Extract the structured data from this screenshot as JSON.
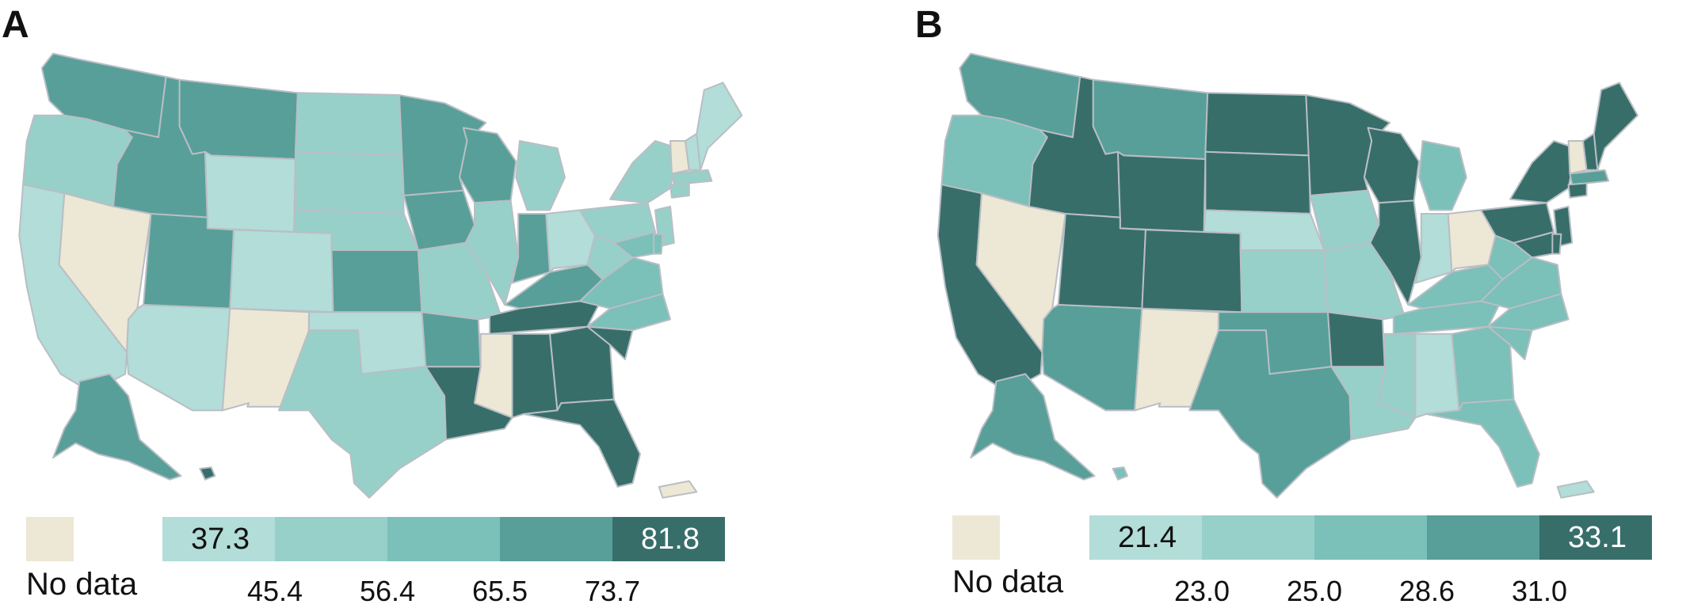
{
  "panels": [
    {
      "letter": "A",
      "no_data_label": "No data",
      "colors": [
        "#b2ddd8",
        "#97d0c9",
        "#7bc0b9",
        "#589f99",
        "#386e6a"
      ],
      "no_data_color": "#ede7d5",
      "legend": {
        "min_label": "37.3",
        "max_label": "81.8",
        "breaks": [
          "45.4",
          "56.4",
          "65.5",
          "73.7"
        ]
      },
      "states": {
        "WA": 3,
        "OR": 1,
        "CA": 0,
        "NV": -1,
        "ID": 3,
        "MT": 3,
        "WY": 0,
        "UT": 3,
        "AZ": 0,
        "NM": -1,
        "CO": 0,
        "ND": 1,
        "SD": 1,
        "NE": 1,
        "KS": 3,
        "OK": 0,
        "TX": 1,
        "MN": 3,
        "IA": 3,
        "MO": 1,
        "AR": 3,
        "LA": 4,
        "WI": 3,
        "IL": 1,
        "MI": 1,
        "IN": 3,
        "OH": 0,
        "KY": 3,
        "TN": 4,
        "MS": -1,
        "AL": 4,
        "GA": 4,
        "FL": 4,
        "SC": 4,
        "NC": 2,
        "VA": 2,
        "WV": 1,
        "PA": 1,
        "NY": 1,
        "VT": -1,
        "NH": 0,
        "ME": 0,
        "MA": 1,
        "CT": 1,
        "NJ": 1,
        "MD": 2,
        "DE": 2,
        "AK": 3,
        "HI": 4,
        "PR": -1
      }
    },
    {
      "letter": "B",
      "no_data_label": "No data",
      "colors": [
        "#b2ddd8",
        "#97d0c9",
        "#7bc0b9",
        "#589f99",
        "#386e6a"
      ],
      "no_data_color": "#ede7d5",
      "legend": {
        "min_label": "21.4",
        "max_label": "33.1",
        "breaks": [
          "23.0",
          "25.0",
          "28.6",
          "31.0"
        ]
      },
      "states": {
        "WA": 3,
        "OR": 2,
        "CA": 4,
        "NV": -1,
        "ID": 4,
        "MT": 3,
        "WY": 4,
        "UT": 4,
        "AZ": 3,
        "NM": -1,
        "CO": 4,
        "ND": 4,
        "SD": 4,
        "NE": 0,
        "KS": 1,
        "OK": 3,
        "TX": 3,
        "MN": 4,
        "IA": 1,
        "MO": 1,
        "AR": 4,
        "LA": 1,
        "WI": 4,
        "IL": 4,
        "MI": 2,
        "IN": 0,
        "OH": -1,
        "KY": 2,
        "TN": 2,
        "MS": 1,
        "AL": 0,
        "GA": 2,
        "FL": 2,
        "SC": 2,
        "NC": 2,
        "VA": 2,
        "WV": 2,
        "PA": 4,
        "NY": 4,
        "VT": -1,
        "NH": 4,
        "ME": 4,
        "MA": 3,
        "CT": 4,
        "NJ": 4,
        "MD": 4,
        "DE": 4,
        "AK": 3,
        "HI": 2,
        "PR": 0
      }
    }
  ]
}
